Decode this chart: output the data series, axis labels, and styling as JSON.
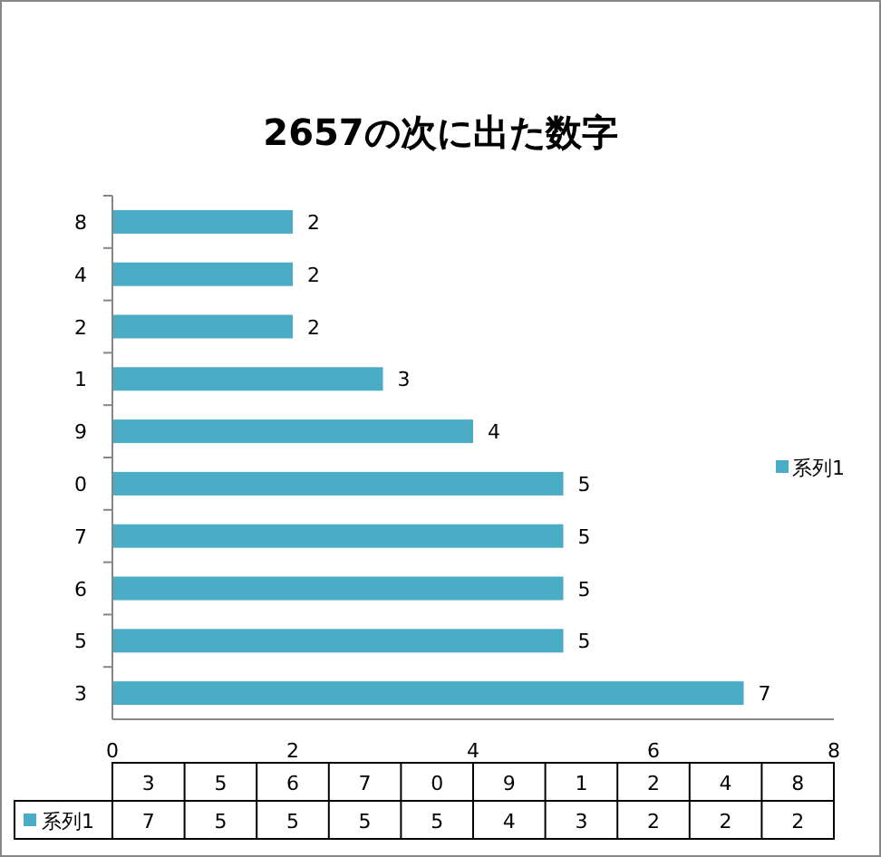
{
  "chart_data": {
    "type": "bar",
    "orientation": "horizontal",
    "title": "2657の次に出た数字",
    "categories": [
      "8",
      "4",
      "2",
      "1",
      "9",
      "0",
      "7",
      "6",
      "5",
      "3"
    ],
    "series": [
      {
        "name": "系列1",
        "color": "#4bacc6",
        "values": [
          2,
          2,
          2,
          3,
          4,
          5,
          5,
          5,
          5,
          7
        ]
      }
    ],
    "xlim": [
      0,
      8
    ],
    "xticks": [
      0,
      2,
      4,
      6,
      8
    ],
    "data_labels": true,
    "legend": "right",
    "grid": false
  }
}
